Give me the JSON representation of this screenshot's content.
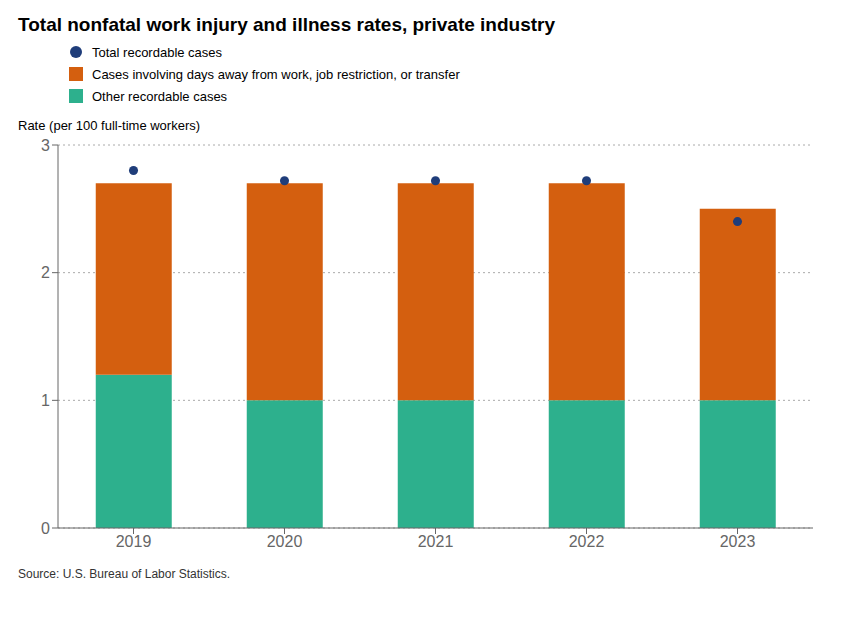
{
  "chart_data": {
    "type": "bar",
    "title": "Total nonfatal work injury and illness rates, private industry",
    "ylabel": "Rate (per 100 full-time workers)",
    "annotations": [
      "Source: U.S. Bureau of Labor Statistics."
    ],
    "categories": [
      "2019",
      "2020",
      "2021",
      "2022",
      "2023"
    ],
    "series": [
      {
        "name": "Other recordable cases",
        "type": "bar",
        "color": "#2db08d",
        "values": [
          1.2,
          1.0,
          1.0,
          1.0,
          1.0
        ]
      },
      {
        "name": "Cases involving days away from work, job restriction, or transfer",
        "type": "bar",
        "color": "#d45f0f",
        "values": [
          1.5,
          1.7,
          1.7,
          1.7,
          1.5
        ]
      },
      {
        "name": "Total recordable cases",
        "type": "scatter",
        "marker": "circle",
        "color": "#1f3d7a",
        "values": [
          2.8,
          2.72,
          2.72,
          2.72,
          2.4
        ]
      }
    ],
    "stacked": true,
    "ylim": [
      0,
      3
    ],
    "yticks": [
      0,
      1,
      2,
      3
    ],
    "grid": true,
    "legend": "upper left"
  }
}
